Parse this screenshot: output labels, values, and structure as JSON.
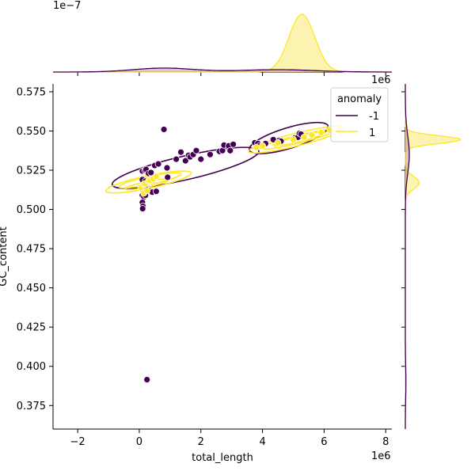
{
  "chart_data": {
    "type": "scatter",
    "title": "",
    "xlabel": "total_length",
    "ylabel": "GC_content",
    "x_offset_text": "1e6",
    "x_offset_text_top": "1e6",
    "top_offset_text": "1e−7",
    "xlim": [
      -2.8,
      8.2
    ],
    "ylim": [
      0.36,
      0.58
    ],
    "xticks": [
      -2,
      0,
      2,
      4,
      6,
      8
    ],
    "xtick_labels": [
      "−2",
      "0",
      "2",
      "4",
      "6",
      "8"
    ],
    "yticks": [
      0.375,
      0.4,
      0.425,
      0.45,
      0.475,
      0.5,
      0.525,
      0.55,
      0.575
    ],
    "ytick_labels": [
      "0.375",
      "0.400",
      "0.425",
      "0.450",
      "0.475",
      "0.500",
      "0.525",
      "0.550",
      "0.575"
    ],
    "grid": false,
    "legend": {
      "title": "anomaly",
      "placement": "top-right",
      "entries": [
        {
          "label": "-1",
          "color": "#440154"
        },
        {
          "label": "1",
          "color": "#fde725"
        }
      ]
    },
    "colors": {
      "anomaly_neg": "#440154",
      "anomaly_pos": "#fde725",
      "anomaly_pos_fill": "#fdf3b0"
    },
    "series": [
      {
        "name": "-1",
        "points": [
          [
            0.1,
            0.5245
          ],
          [
            0.18,
            0.525
          ],
          [
            0.22,
            0.5255
          ],
          [
            0.3,
            0.523
          ],
          [
            0.38,
            0.5235
          ],
          [
            0.1,
            0.519
          ],
          [
            0.2,
            0.518
          ],
          [
            0.3,
            0.5175
          ],
          [
            0.45,
            0.519
          ],
          [
            0.55,
            0.521
          ],
          [
            0.1,
            0.513
          ],
          [
            0.2,
            0.5135
          ],
          [
            0.3,
            0.512
          ],
          [
            0.42,
            0.511
          ],
          [
            0.55,
            0.5115
          ],
          [
            0.1,
            0.509
          ],
          [
            0.15,
            0.508
          ],
          [
            0.2,
            0.509
          ],
          [
            0.1,
            0.5045
          ],
          [
            0.12,
            0.502
          ],
          [
            0.11,
            0.5005
          ],
          [
            0.25,
            0.3915
          ],
          [
            0.8,
            0.551
          ],
          [
            0.5,
            0.528
          ],
          [
            0.62,
            0.529
          ],
          [
            0.9,
            0.5265
          ],
          [
            0.92,
            0.5205
          ],
          [
            1.2,
            0.532
          ],
          [
            1.35,
            0.5365
          ],
          [
            1.5,
            0.531
          ],
          [
            1.6,
            0.5345
          ],
          [
            1.65,
            0.5335
          ],
          [
            1.75,
            0.535
          ],
          [
            1.85,
            0.5375
          ],
          [
            2.0,
            0.532
          ],
          [
            2.3,
            0.535
          ],
          [
            2.6,
            0.537
          ],
          [
            2.7,
            0.5375
          ],
          [
            2.75,
            0.541
          ],
          [
            2.9,
            0.5405
          ],
          [
            2.95,
            0.5375
          ],
          [
            3.05,
            0.5415
          ],
          [
            3.75,
            0.5425
          ],
          [
            3.85,
            0.542
          ],
          [
            3.9,
            0.5405
          ],
          [
            4.1,
            0.542
          ],
          [
            4.35,
            0.5445
          ],
          [
            4.55,
            0.544
          ],
          [
            4.6,
            0.5435
          ],
          [
            5.05,
            0.5455
          ],
          [
            5.15,
            0.546
          ],
          [
            5.2,
            0.5485
          ],
          [
            5.25,
            0.548
          ]
        ]
      },
      {
        "name": "1",
        "points": [
          [
            0.05,
            0.514
          ],
          [
            0.15,
            0.516
          ],
          [
            0.2,
            0.5165
          ],
          [
            0.3,
            0.518
          ],
          [
            0.35,
            0.5185
          ],
          [
            0.45,
            0.5195
          ],
          [
            0.55,
            0.521
          ],
          [
            0.15,
            0.5105
          ],
          [
            0.25,
            0.512
          ],
          [
            3.8,
            0.5395
          ],
          [
            4.0,
            0.5405
          ],
          [
            4.5,
            0.5425
          ],
          [
            5.0,
            0.5445
          ],
          [
            5.35,
            0.546
          ],
          [
            5.6,
            0.5475
          ],
          [
            5.9,
            0.549
          ],
          [
            6.2,
            0.5505
          ],
          [
            6.5,
            0.552
          ]
        ]
      }
    ],
    "marginal": {
      "top_kde": "density of total_length by anomaly",
      "right_kde": "density of GC_content by anomaly"
    }
  }
}
